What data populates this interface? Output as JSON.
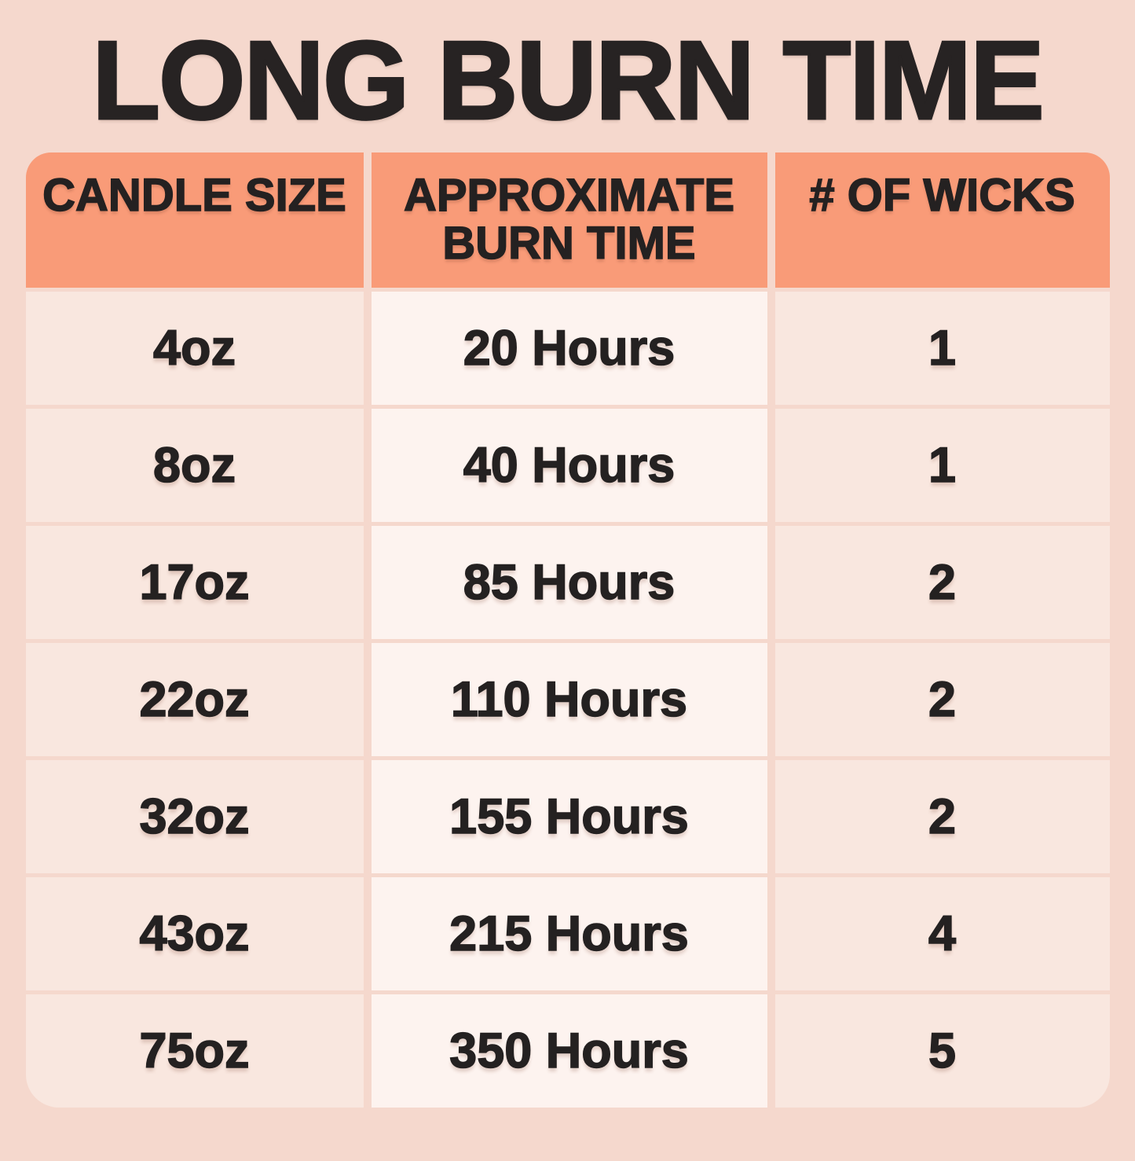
{
  "title": "LONG BURN TIME",
  "colors": {
    "page_background": "#f5d8cd",
    "header_fill": "#f99b78",
    "cell_fill_outer_columns": "#f9e7df",
    "cell_fill_middle_column": "#fdf3ef",
    "text": "#242121"
  },
  "table": {
    "columns": [
      {
        "key": "size",
        "label": "CANDLE SIZE"
      },
      {
        "key": "burn_time",
        "label": "APPROXIMATE\nBURN TIME"
      },
      {
        "key": "wicks",
        "label": "# OF WICKS"
      }
    ],
    "rows": [
      {
        "size": "4oz",
        "burn_time": "20 Hours",
        "wicks": "1"
      },
      {
        "size": "8oz",
        "burn_time": "40 Hours",
        "wicks": "1"
      },
      {
        "size": "17oz",
        "burn_time": "85 Hours",
        "wicks": "2"
      },
      {
        "size": "22oz",
        "burn_time": "110 Hours",
        "wicks": "2"
      },
      {
        "size": "32oz",
        "burn_time": "155 Hours",
        "wicks": "2"
      },
      {
        "size": "43oz",
        "burn_time": "215 Hours",
        "wicks": "4"
      },
      {
        "size": "75oz",
        "burn_time": "350 Hours",
        "wicks": "5"
      }
    ]
  },
  "chart_data": {
    "type": "table",
    "title": "LONG BURN TIME",
    "columns": [
      "CANDLE SIZE",
      "APPROXIMATE BURN TIME",
      "# OF WICKS"
    ],
    "sizes_oz": [
      4,
      8,
      17,
      22,
      32,
      43,
      75
    ],
    "burn_hours": [
      20,
      40,
      85,
      110,
      155,
      215,
      350
    ],
    "wicks": [
      1,
      1,
      2,
      2,
      2,
      4,
      5
    ]
  }
}
